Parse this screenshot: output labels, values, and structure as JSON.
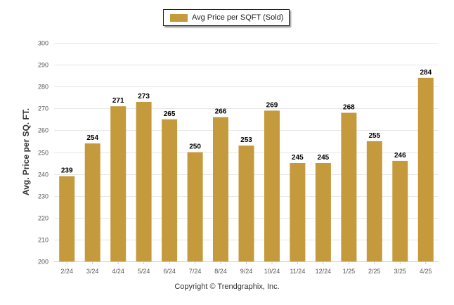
{
  "legend": {
    "label": "Avg Price per SQFT (Sold)"
  },
  "footer": {
    "copyright": "Copyright © Trendgraphix, Inc."
  },
  "colors": {
    "bar": "#c49a3c",
    "grid": "#e6e6e6",
    "axis": "#cccccc"
  },
  "chart_data": {
    "type": "bar",
    "title": "",
    "xlabel": "",
    "ylabel": "Avg. Price per SQ. FT.",
    "ylim": [
      200,
      300
    ],
    "yticks": [
      200,
      210,
      220,
      230,
      240,
      250,
      260,
      270,
      280,
      290,
      300
    ],
    "grid": true,
    "legend_position": "top-center",
    "categories": [
      "2/24",
      "3/24",
      "4/24",
      "5/24",
      "6/24",
      "7/24",
      "8/24",
      "9/24",
      "10/24",
      "11/24",
      "12/24",
      "1/25",
      "2/25",
      "3/25",
      "4/25"
    ],
    "series": [
      {
        "name": "Avg Price per SQFT (Sold)",
        "values": [
          239,
          254,
          271,
          273,
          265,
          250,
          266,
          253,
          269,
          245,
          245,
          268,
          255,
          246,
          284
        ]
      }
    ]
  }
}
